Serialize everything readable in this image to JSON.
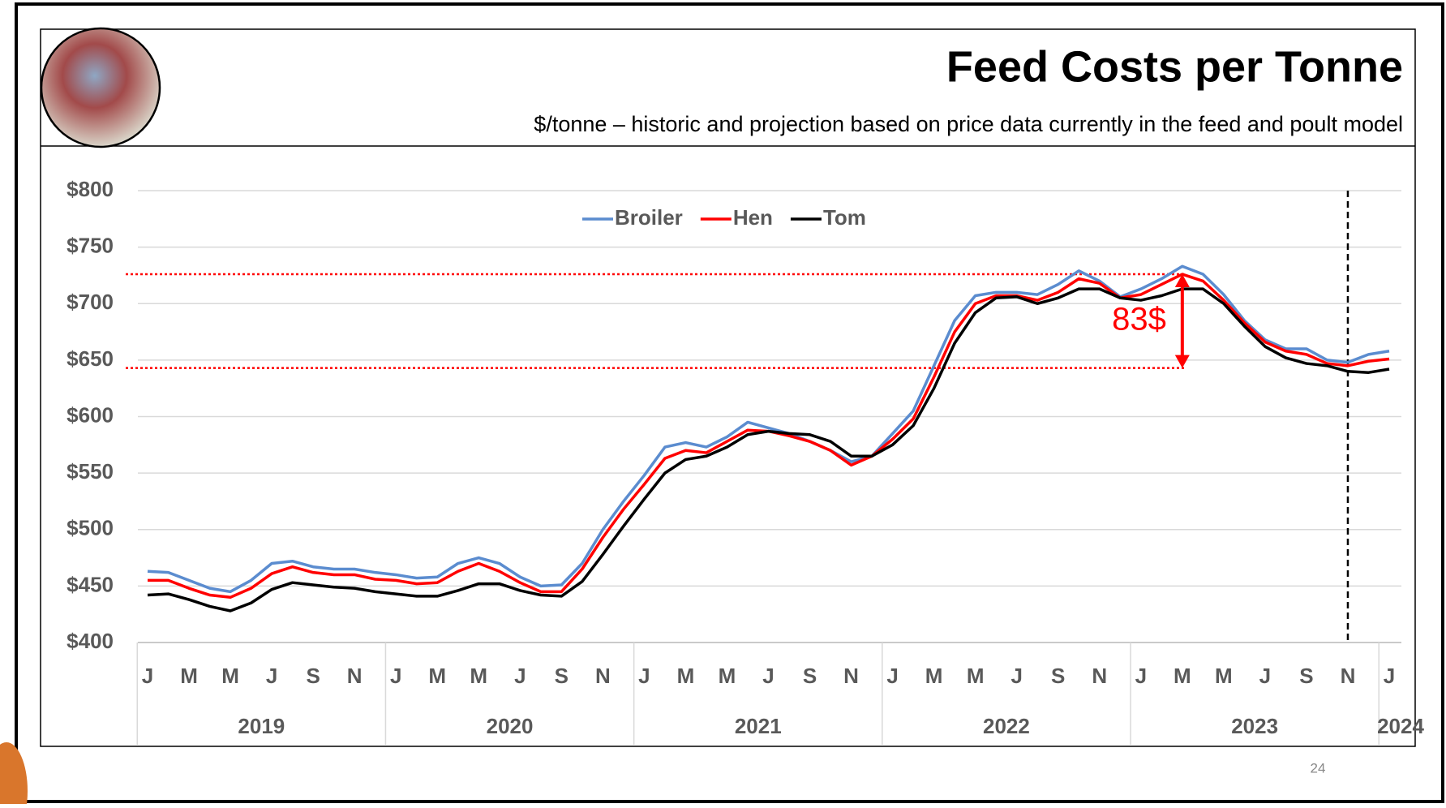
{
  "chart_data": {
    "type": "line",
    "title": "Feed Costs per Tonne",
    "subtitle": "$/tonne – historic and projection based on price data currently in the feed and poult model",
    "categories": [
      "J",
      null,
      "M",
      null,
      "M",
      null,
      "J",
      null,
      "S",
      null,
      "N",
      null,
      "J",
      null,
      "M",
      null,
      "M",
      null,
      "J",
      null,
      "S",
      null,
      "N",
      null,
      "J",
      null,
      "M",
      null,
      "M",
      null,
      "J",
      null,
      "S",
      null,
      "N",
      null,
      "J",
      null,
      "M",
      null,
      "M",
      null,
      "J",
      null,
      "S",
      null,
      "N",
      null,
      "J",
      null,
      "M",
      null,
      "M",
      null,
      "J",
      null,
      "S",
      null,
      "N",
      null,
      "J"
    ],
    "years": [
      "2019",
      "2020",
      "2021",
      "2022",
      "2023",
      "2024"
    ],
    "series": [
      {
        "name": "Broiler",
        "color": "#5b8ccf",
        "values": [
          463,
          462,
          455,
          448,
          445,
          455,
          470,
          472,
          467,
          465,
          465,
          462,
          460,
          457,
          458,
          470,
          475,
          470,
          458,
          450,
          451,
          470,
          500,
          525,
          548,
          573,
          577,
          573,
          582,
          595,
          590,
          585,
          578,
          570,
          560,
          565,
          585,
          605,
          645,
          685,
          707,
          710,
          710,
          708,
          717,
          729,
          720,
          706,
          713,
          722,
          733,
          726,
          708,
          685,
          668,
          660,
          660,
          650,
          648,
          655,
          658
        ]
      },
      {
        "name": "Hen",
        "color": "#ff0000",
        "values": [
          455,
          455,
          448,
          442,
          440,
          448,
          461,
          467,
          462,
          460,
          460,
          456,
          455,
          452,
          453,
          463,
          470,
          463,
          453,
          445,
          445,
          465,
          493,
          518,
          540,
          563,
          570,
          568,
          578,
          588,
          587,
          583,
          578,
          570,
          557,
          565,
          580,
          598,
          635,
          675,
          700,
          707,
          707,
          703,
          710,
          722,
          718,
          705,
          708,
          717,
          726,
          720,
          703,
          683,
          666,
          658,
          655,
          647,
          645,
          649,
          651
        ]
      },
      {
        "name": "Tom",
        "color": "#000000",
        "values": [
          442,
          443,
          438,
          432,
          428,
          435,
          447,
          453,
          451,
          449,
          448,
          445,
          443,
          441,
          441,
          446,
          452,
          452,
          446,
          442,
          441,
          454,
          478,
          503,
          527,
          550,
          562,
          565,
          573,
          584,
          587,
          585,
          584,
          578,
          565,
          565,
          575,
          592,
          625,
          665,
          692,
          705,
          706,
          700,
          705,
          713,
          713,
          705,
          703,
          707,
          713,
          713,
          700,
          680,
          662,
          652,
          647,
          645,
          640,
          639,
          642
        ]
      }
    ],
    "ylim": [
      400,
      800
    ],
    "yticks": [
      {
        "value": 400,
        "label": "$400"
      },
      {
        "value": 450,
        "label": "$450"
      },
      {
        "value": 500,
        "label": "$500"
      },
      {
        "value": 550,
        "label": "$550"
      },
      {
        "value": 600,
        "label": "$600"
      },
      {
        "value": 650,
        "label": "$650"
      },
      {
        "value": 700,
        "label": "$700"
      },
      {
        "value": 750,
        "label": "$750"
      },
      {
        "value": 800,
        "label": "$800"
      }
    ],
    "grid": true,
    "legend": "top",
    "reference_lines": [
      726,
      643
    ],
    "annotation": "83$",
    "page_number": "24"
  }
}
